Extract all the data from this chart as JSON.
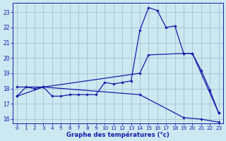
{
  "background_color": "#cce8f0",
  "line_color": "#1a1aaa",
  "grid_color": "#99bbcc",
  "xlim_min": -0.5,
  "xlim_max": 23.5,
  "ylim_min": 15.7,
  "ylim_max": 23.6,
  "yticks": [
    16,
    17,
    18,
    19,
    20,
    21,
    22,
    23
  ],
  "xticks": [
    0,
    1,
    2,
    3,
    4,
    5,
    6,
    7,
    8,
    9,
    10,
    11,
    12,
    13,
    14,
    15,
    16,
    17,
    18,
    19,
    20,
    21,
    22,
    23
  ],
  "xlabel": "Graphe des températures (°c)",
  "series_main_x": [
    0,
    1,
    2,
    3,
    4,
    5,
    6,
    7,
    8,
    9,
    10,
    11,
    12,
    13,
    14,
    15,
    16,
    17,
    18,
    19,
    20,
    21,
    22,
    23
  ],
  "series_main_y": [
    17.5,
    18.1,
    18.0,
    18.1,
    17.5,
    17.5,
    17.6,
    17.6,
    17.6,
    17.6,
    18.4,
    18.3,
    18.4,
    18.5,
    21.8,
    23.3,
    23.1,
    22.0,
    22.1,
    20.3,
    20.3,
    19.2,
    17.9,
    16.4
  ],
  "series_upper_x": [
    0,
    3,
    14,
    15,
    19,
    20,
    23
  ],
  "series_upper_y": [
    18.1,
    18.1,
    19.0,
    20.2,
    20.3,
    20.3,
    16.4
  ],
  "series_lower_x": [
    0,
    3,
    14,
    19,
    21,
    23
  ],
  "series_lower_y": [
    17.5,
    18.1,
    17.6,
    16.1,
    16.0,
    15.8
  ]
}
